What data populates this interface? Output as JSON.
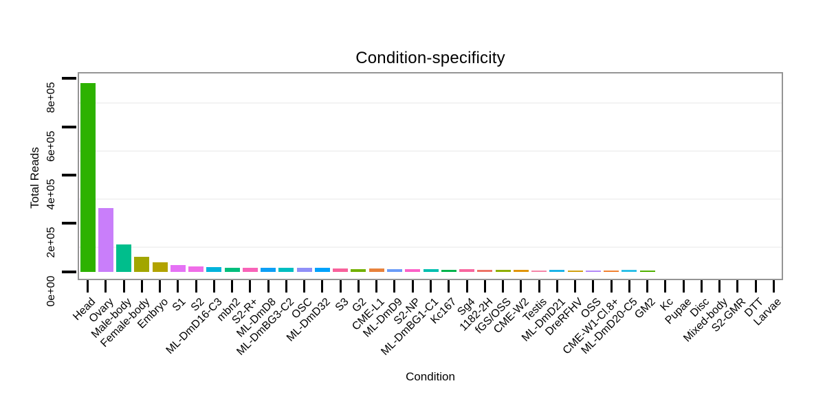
{
  "chart_data": {
    "type": "bar",
    "title": "Condition-specificity",
    "xlabel": "Condition",
    "ylabel": "Total Reads",
    "ylim": [
      0,
      820000
    ],
    "ytick_values": [
      0,
      200000,
      400000,
      600000,
      800000
    ],
    "ytick_labels": [
      "0e+00",
      "2e+05",
      "4e+05",
      "6e+05",
      "8e+05"
    ],
    "grid_minor_values": [
      100000,
      300000,
      500000,
      700000
    ],
    "legend_position": "none",
    "categories": [
      "Head",
      "Ovary",
      "Male-body",
      "Female-body",
      "Embryo",
      "S1",
      "S2",
      "ML-DmD16-C3",
      "mbn2",
      "S2-R+",
      "ML-DmD8",
      "ML-DmBG3-C2",
      "OSC",
      "ML-DmD32",
      "S3",
      "G2",
      "CME-L1",
      "ML-DmD9",
      "S2-NP",
      "ML-DmBG1-C1",
      "Kc167",
      "Sg4",
      "1182-2H",
      "fGS/OSS",
      "CME-W2",
      "Testis",
      "ML-DmD21",
      "DreRFHV",
      "OSS",
      "CME-W1-Cl.8+",
      "ML-DmD20-C5",
      "GM2",
      "Kc",
      "Pupae",
      "Disc",
      "Mixed-body",
      "S2-GMR",
      "DTT",
      "Larvae"
    ],
    "values": [
      780000,
      263000,
      114000,
      61000,
      38000,
      28000,
      21000,
      18000,
      16500,
      17000,
      15000,
      15000,
      16000,
      15000,
      13000,
      11000,
      12000,
      11000,
      11000,
      10500,
      7000,
      10000,
      8500,
      6000,
      6500,
      5500,
      6500,
      5500,
      5500,
      5200,
      6000,
      5000,
      0,
      0,
      0,
      0,
      0,
      0,
      0
    ],
    "colors": [
      "#2DB200",
      "#C97EFA",
      "#00BE8C",
      "#A2A600",
      "#B2A300",
      "#E572F5",
      "#F06DE8",
      "#00B3DC",
      "#00BE7C",
      "#F863B8",
      "#0D9FF5",
      "#00BEC0",
      "#9090F8",
      "#00A2FC",
      "#F8619B",
      "#72B000",
      "#E8823C",
      "#6B9CF8",
      "#FC61C8",
      "#00BFAF",
      "#00B44C",
      "#F8679F",
      "#ED7466",
      "#8FAE00",
      "#E0950A",
      "#F585A8",
      "#1CB4E8",
      "#D0A010",
      "#B388F8",
      "#F08030",
      "#2EC0E8",
      "#50B000",
      null,
      null,
      null,
      null,
      null,
      null,
      null
    ]
  },
  "styles": {
    "background": "#ffffff",
    "panel_border": "#949494",
    "grid_color": "#f3f3f3",
    "tick_color": "#000000",
    "text_color": "#000000"
  }
}
